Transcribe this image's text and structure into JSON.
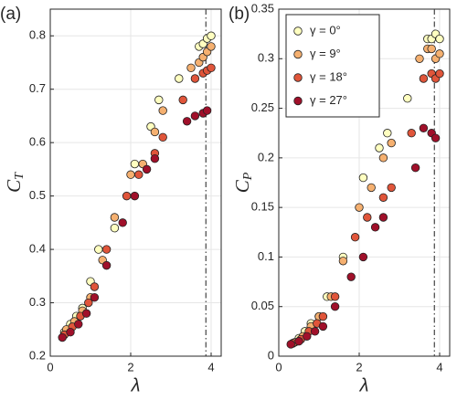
{
  "chart_data": [
    {
      "type": "scatter",
      "panel_label": "(a)",
      "xlabel": "λ",
      "ylabel": "C",
      "ylabel_sub": "T",
      "xlim": [
        0,
        4.25
      ],
      "ylim": [
        0.2,
        0.85
      ],
      "xticks": [
        0,
        2,
        4
      ],
      "yticks": [
        0.2,
        0.3,
        0.4,
        0.5,
        0.6,
        0.7,
        0.8
      ],
      "grid": true,
      "vline": 3.87,
      "series": [
        {
          "color": "#ffffc0",
          "x": [
            0.35,
            0.5,
            0.65,
            0.8,
            1.0,
            1.2,
            1.6,
            2.1,
            2.5,
            2.7,
            3.2,
            3.7,
            3.8,
            3.9,
            4.0
          ],
          "values": [
            0.245,
            0.26,
            0.275,
            0.29,
            0.34,
            0.4,
            0.44,
            0.56,
            0.63,
            0.68,
            0.72,
            0.78,
            0.785,
            0.795,
            0.8
          ]
        },
        {
          "color": "#f5b070",
          "x": [
            0.4,
            0.6,
            0.8,
            1.0,
            1.3,
            1.6,
            2.0,
            2.3,
            2.6,
            2.8,
            3.5,
            3.7,
            3.8,
            3.9,
            4.0
          ],
          "values": [
            0.25,
            0.265,
            0.285,
            0.31,
            0.38,
            0.46,
            0.54,
            0.56,
            0.62,
            0.66,
            0.74,
            0.75,
            0.76,
            0.77,
            0.78
          ]
        },
        {
          "color": "#e0553a",
          "x": [
            0.35,
            0.55,
            0.75,
            0.95,
            1.1,
            1.4,
            1.9,
            2.2,
            2.6,
            2.8,
            3.3,
            3.6,
            3.8,
            3.9,
            4.0
          ],
          "values": [
            0.24,
            0.255,
            0.275,
            0.3,
            0.33,
            0.4,
            0.5,
            0.54,
            0.58,
            0.61,
            0.68,
            0.72,
            0.73,
            0.735,
            0.74
          ]
        },
        {
          "color": "#a0102a",
          "x": [
            0.3,
            0.5,
            0.7,
            0.9,
            1.1,
            1.4,
            1.8,
            2.1,
            2.4,
            2.6,
            3.4,
            3.6,
            3.8,
            3.9
          ],
          "values": [
            0.235,
            0.245,
            0.26,
            0.28,
            0.31,
            0.37,
            0.45,
            0.5,
            0.55,
            0.57,
            0.64,
            0.65,
            0.655,
            0.66
          ]
        }
      ]
    },
    {
      "type": "scatter",
      "panel_label": "(b)",
      "xlabel": "λ",
      "ylabel": "C",
      "ylabel_sub": "P",
      "xlim": [
        0,
        4.25
      ],
      "ylim": [
        0,
        0.35
      ],
      "xticks": [
        0,
        2,
        4
      ],
      "yticks": [
        0,
        0.05,
        0.1,
        0.15,
        0.2,
        0.25,
        0.3,
        0.35
      ],
      "grid": true,
      "vline": 3.87,
      "legend": "upper left",
      "series": [
        {
          "name": "γ = 0°",
          "color": "#ffffc0",
          "x": [
            0.35,
            0.5,
            0.65,
            0.8,
            1.0,
            1.2,
            1.6,
            2.1,
            2.5,
            2.7,
            3.2,
            3.7,
            3.8,
            3.9,
            4.0
          ],
          "values": [
            0.013,
            0.018,
            0.025,
            0.033,
            0.04,
            0.06,
            0.1,
            0.18,
            0.21,
            0.225,
            0.26,
            0.32,
            0.32,
            0.325,
            0.32
          ]
        },
        {
          "name": "γ = 9°",
          "color": "#f5b070",
          "x": [
            0.4,
            0.6,
            0.8,
            1.0,
            1.3,
            1.6,
            2.0,
            2.3,
            2.6,
            2.8,
            3.5,
            3.7,
            3.8,
            3.9,
            4.0
          ],
          "values": [
            0.014,
            0.02,
            0.03,
            0.04,
            0.06,
            0.096,
            0.15,
            0.17,
            0.2,
            0.215,
            0.3,
            0.31,
            0.31,
            0.3,
            0.305
          ]
        },
        {
          "name": "γ = 18°",
          "color": "#e0553a",
          "x": [
            0.35,
            0.55,
            0.75,
            0.95,
            1.1,
            1.4,
            1.9,
            2.2,
            2.6,
            2.8,
            3.3,
            3.6,
            3.8,
            3.9,
            4.0
          ],
          "values": [
            0.013,
            0.017,
            0.025,
            0.033,
            0.04,
            0.06,
            0.12,
            0.14,
            0.16,
            0.17,
            0.225,
            0.28,
            0.285,
            0.28,
            0.285
          ]
        },
        {
          "name": "γ = 27°",
          "color": "#a0102a",
          "x": [
            0.3,
            0.5,
            0.7,
            0.9,
            1.1,
            1.4,
            1.8,
            2.1,
            2.4,
            2.6,
            3.4,
            3.6,
            3.8,
            3.9
          ],
          "values": [
            0.012,
            0.015,
            0.02,
            0.025,
            0.03,
            0.05,
            0.08,
            0.1,
            0.13,
            0.14,
            0.19,
            0.23,
            0.225,
            0.22
          ]
        }
      ]
    }
  ]
}
